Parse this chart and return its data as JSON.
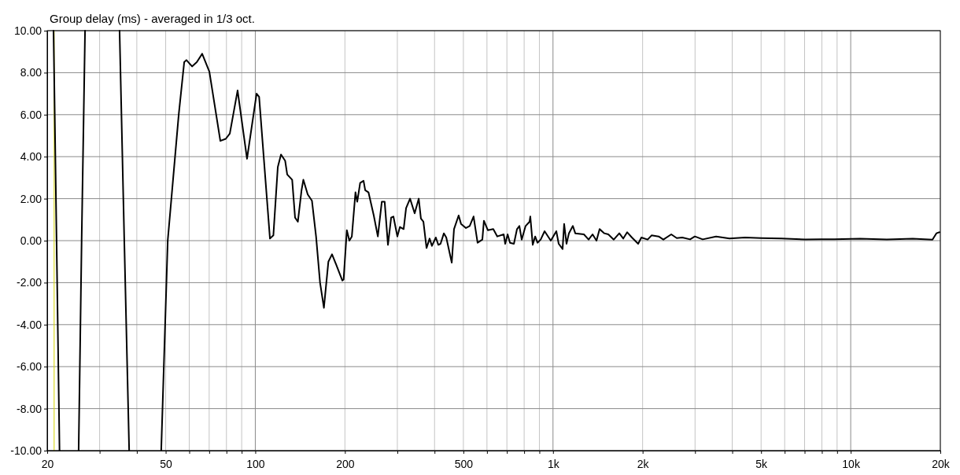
{
  "chart_data": {
    "type": "line",
    "title": "Group delay (ms) - averaged in 1/3 oct.",
    "log": "x",
    "grid": true,
    "marker": "none",
    "line_style": "solid",
    "xlim": [
      20,
      20000
    ],
    "xticks": [
      20,
      {
        "value": 30,
        "label": null
      },
      {
        "value": 40,
        "label": null
      },
      50,
      {
        "value": 60,
        "label": null
      },
      {
        "value": 70,
        "label": null
      },
      {
        "value": 80,
        "label": null
      },
      {
        "value": 90,
        "label": null
      },
      100,
      200,
      {
        "value": 300,
        "label": null
      },
      {
        "value": 400,
        "label": null
      },
      500,
      {
        "value": 600,
        "label": null
      },
      {
        "value": 700,
        "label": null
      },
      {
        "value": 800,
        "label": null
      },
      {
        "value": 900,
        "label": null
      },
      {
        "value": 1000,
        "label": "1k"
      },
      {
        "value": 2000,
        "label": "2k"
      },
      {
        "value": 3000,
        "label": null
      },
      {
        "value": 4000,
        "label": null
      },
      {
        "value": 5000,
        "label": "5k"
      },
      {
        "value": 6000,
        "label": null
      },
      {
        "value": 7000,
        "label": null
      },
      {
        "value": 8000,
        "label": null
      },
      {
        "value": 9000,
        "label": null
      },
      {
        "value": 10000,
        "label": "10k"
      },
      {
        "value": 20000,
        "label": "20k"
      }
    ],
    "ylim": [
      -10,
      10
    ],
    "yticks": [
      {
        "value": -10,
        "label": "-10.00"
      },
      {
        "value": -8,
        "label": "-8.00"
      },
      {
        "value": -6,
        "label": "-6.00"
      },
      {
        "value": -4,
        "label": "-4.00"
      },
      {
        "value": -2,
        "label": "-2.00"
      },
      {
        "value": 0,
        "label": "0.00"
      },
      {
        "value": 2,
        "label": "2.00"
      },
      {
        "value": 4,
        "label": "4.00"
      },
      {
        "value": 6,
        "label": "6.00"
      },
      {
        "value": 8,
        "label": "8.00"
      },
      {
        "value": 10,
        "label": "10.00"
      }
    ],
    "ref_lines": [
      {
        "axis": "x",
        "value": 21.1,
        "color": "#d4d400"
      }
    ],
    "series": [
      {
        "color": "#000000",
        "x": [
          21.0,
          21.5,
          22.0,
          24,
          25.5,
          26.1,
          26.8,
          30,
          35.0,
          36.3,
          37.7,
          42,
          48.3,
          50.8,
          55.3,
          57.7,
          58.7,
          61.3,
          63.6,
          66.3,
          70.1,
          76.3,
          79.6,
          82.1,
          87.2,
          93.8,
          101,
          103,
          112,
          115,
          119,
          122,
          126,
          128,
          133,
          136,
          139,
          143,
          145,
          150,
          155,
          160,
          165,
          170,
          176,
          181,
          187,
          196,
          198,
          203,
          207,
          211,
          217,
          220,
          225,
          231,
          234,
          240,
          250,
          258,
          266,
          272,
          279,
          286,
          291,
          300,
          306,
          315,
          321,
          331,
          343,
          354,
          360,
          367,
          376,
          385,
          392,
          404,
          412,
          419,
          430,
          438,
          457,
          465,
          482,
          491,
          510,
          525,
          541,
          558,
          579,
          586,
          604,
          630,
          650,
          683,
          691,
          704,
          717,
          739,
          757,
          771,
          785,
          809,
          834,
          839,
          855,
          871,
          887,
          909,
          937,
          983,
          1026,
          1045,
          1077,
          1090,
          1110,
          1131,
          1166,
          1188,
          1270,
          1317,
          1358,
          1400,
          1434,
          1487,
          1534,
          1600,
          1670,
          1722,
          1775,
          1841,
          1932,
          1981,
          2079,
          2143,
          2264,
          2348,
          2496,
          2604,
          2718,
          2887,
          2995,
          3183,
          3530,
          3915,
          4422,
          4994,
          5851,
          7022,
          7931,
          8795,
          10750,
          13220,
          16160,
          18820,
          19400,
          19880
        ],
        "values": [
          10,
          0,
          -10,
          null,
          -10,
          0,
          10,
          null,
          10,
          0,
          -10,
          null,
          -10,
          0,
          6.0,
          8.5,
          8.6,
          8.3,
          8.5,
          8.9,
          8.05,
          4.75,
          4.85,
          5.1,
          7.15,
          3.9,
          7.0,
          6.85,
          0.1,
          0.25,
          3.5,
          4.1,
          3.8,
          3.15,
          2.9,
          1.1,
          0.9,
          2.4,
          2.9,
          2.2,
          1.9,
          0.2,
          -2.0,
          -3.2,
          -1.0,
          -0.65,
          -1.15,
          -1.9,
          -1.85,
          0.5,
          0.0,
          0.2,
          2.3,
          1.85,
          2.75,
          2.85,
          2.4,
          2.3,
          1.2,
          0.2,
          1.85,
          1.85,
          -0.2,
          1.1,
          1.15,
          0.2,
          0.65,
          0.55,
          1.55,
          2.0,
          1.3,
          2.0,
          1.05,
          0.9,
          -0.35,
          0.1,
          -0.25,
          0.15,
          -0.2,
          -0.15,
          0.35,
          0.15,
          -1.05,
          0.55,
          1.2,
          0.8,
          0.6,
          0.7,
          1.15,
          -0.1,
          0.05,
          0.95,
          0.5,
          0.55,
          0.2,
          0.3,
          -0.15,
          0.3,
          -0.1,
          -0.15,
          0.55,
          0.7,
          0.05,
          0.7,
          0.9,
          1.15,
          -0.2,
          0.2,
          -0.1,
          0.05,
          0.45,
          0.0,
          0.45,
          -0.15,
          -0.4,
          0.8,
          -0.15,
          0.35,
          0.7,
          0.35,
          0.3,
          0.05,
          0.3,
          0,
          0.55,
          0.35,
          0.3,
          0.05,
          0.35,
          0.1,
          0.4,
          0.15,
          -0.15,
          0.15,
          0.05,
          0.25,
          0.2,
          0.05,
          0.3,
          0.12,
          0.15,
          0.06,
          0.2,
          0.06,
          0.2,
          0.1,
          0.15,
          0.12,
          0.1,
          0.06,
          0.07,
          0.07,
          0.09,
          0.06,
          0.09,
          0.05,
          0.35,
          0.4
        ]
      }
    ]
  }
}
